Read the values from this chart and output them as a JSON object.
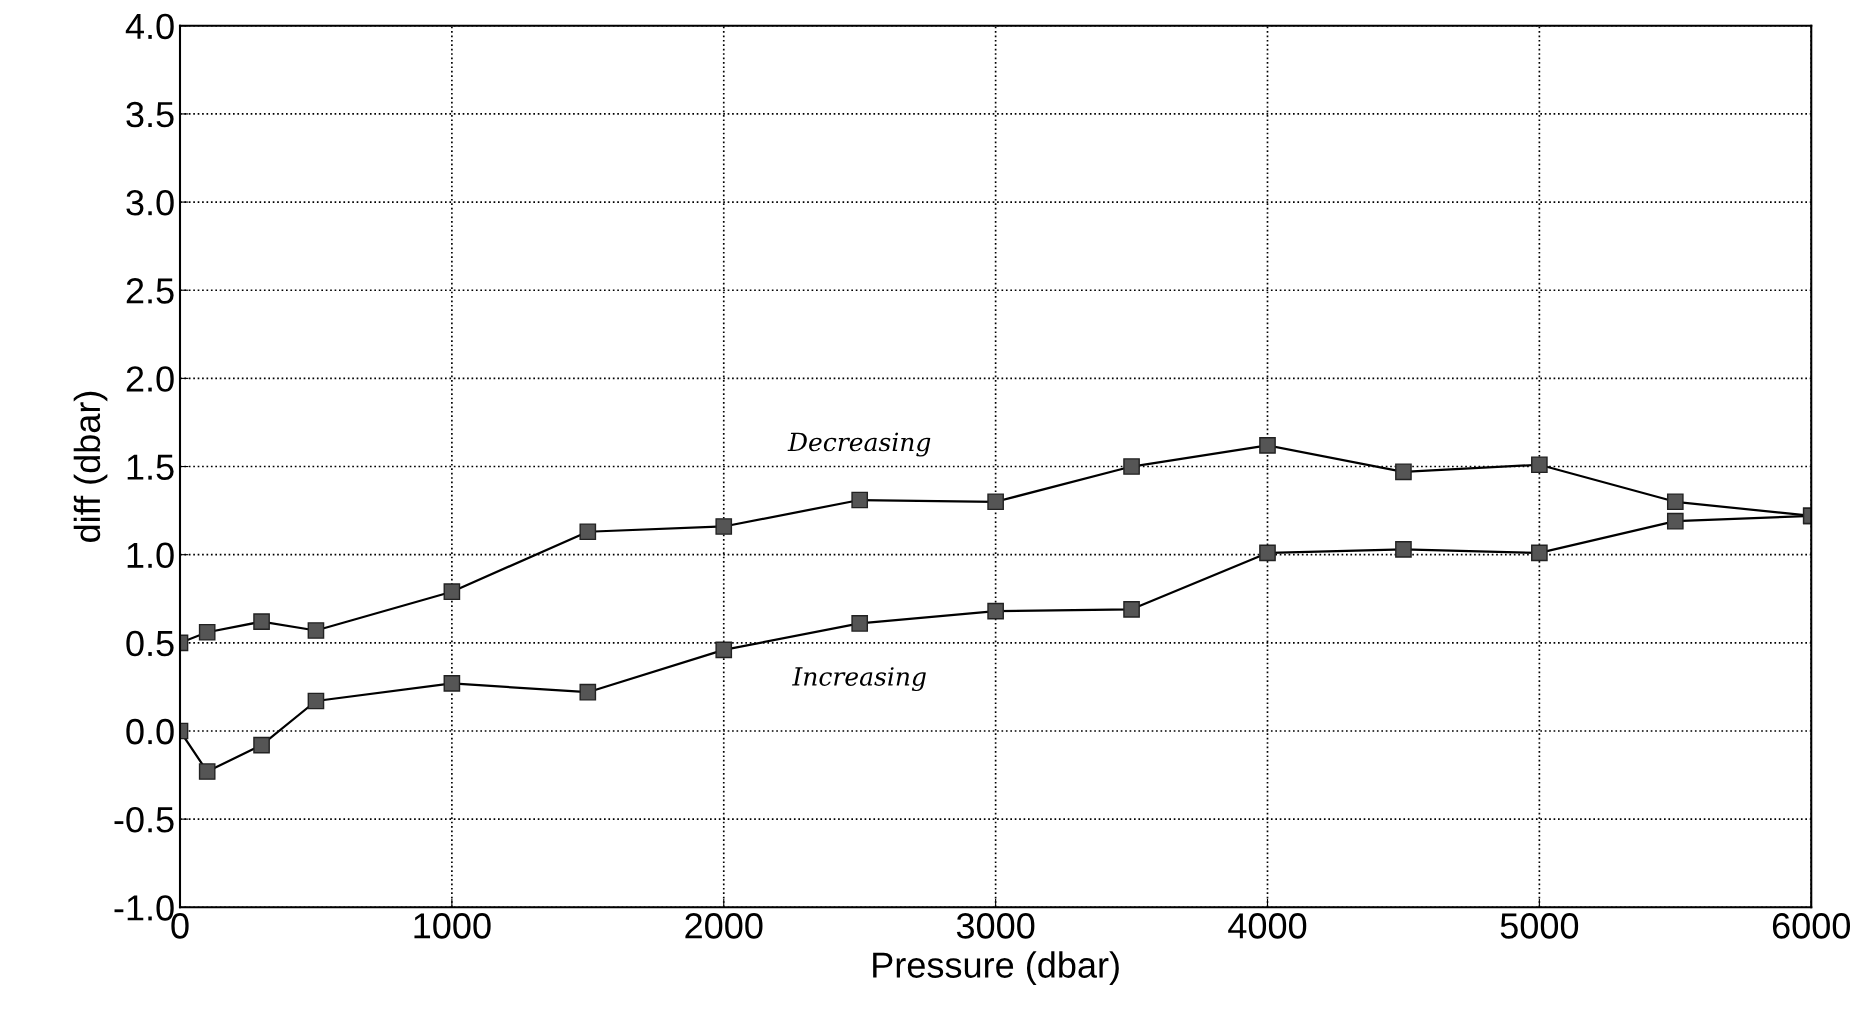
{
  "chart_data": {
    "type": "line",
    "xlabel": "Pressure (dbar)",
    "ylabel": "diff (dbar)",
    "x": [
      0,
      100,
      300,
      500,
      1000,
      1500,
      2000,
      2500,
      3000,
      3500,
      4000,
      4500,
      5000,
      5500,
      6000
    ],
    "series": [
      {
        "name": "Decreasing",
        "color": "#000000",
        "values": [
          0.5,
          0.56,
          0.62,
          0.57,
          0.79,
          1.13,
          1.16,
          1.31,
          1.3,
          1.5,
          1.62,
          1.47,
          1.51,
          1.3,
          1.22
        ]
      },
      {
        "name": "Increasing",
        "color": "#000000",
        "values": [
          0.0,
          -0.23,
          -0.08,
          0.17,
          0.27,
          0.22,
          0.46,
          0.61,
          0.68,
          0.69,
          1.01,
          1.03,
          1.01,
          1.19,
          1.22
        ]
      }
    ],
    "xlim": [
      0,
      6000
    ],
    "xticks": [
      0,
      1000,
      2000,
      3000,
      4000,
      5000,
      6000
    ],
    "ylim": [
      -1.0,
      4.0
    ],
    "yticks": [
      {
        "value": -1.0,
        "label": "-1.0"
      },
      {
        "value": -0.5,
        "label": "-0.5"
      },
      {
        "value": 0.0,
        "label": "0.0"
      },
      {
        "value": 0.5,
        "label": "0.5"
      },
      {
        "value": 1.0,
        "label": "1.0"
      },
      {
        "value": 1.5,
        "label": "1.5"
      },
      {
        "value": 2.0,
        "label": "2.0"
      },
      {
        "value": 2.5,
        "label": "2.5"
      },
      {
        "value": 3.0,
        "label": "3.0"
      },
      {
        "value": 3.5,
        "label": "3.5"
      },
      {
        "value": 4.0,
        "label": "4.0"
      }
    ],
    "grid": true,
    "marker": "square",
    "line_style": "solid",
    "legend": false
  }
}
